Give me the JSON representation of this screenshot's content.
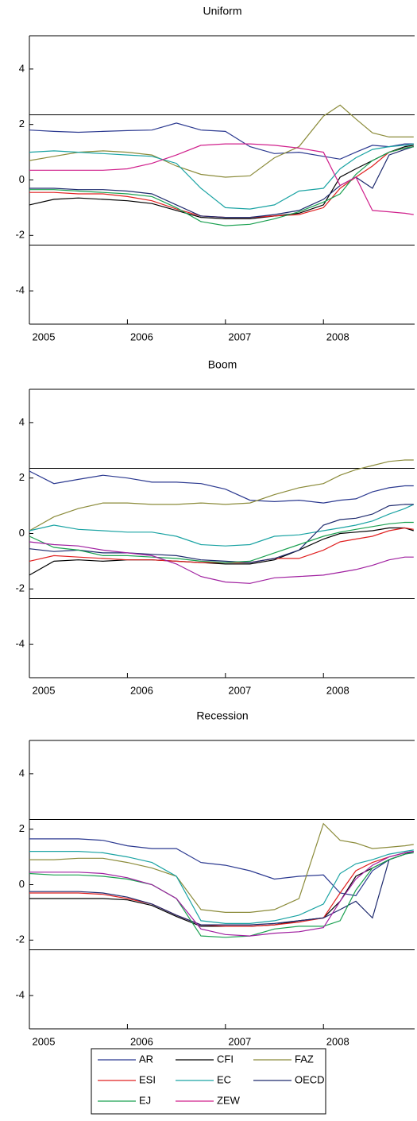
{
  "chart_data": [
    {
      "type": "line",
      "title": "Uniform",
      "x": [
        2005.0,
        2005.25,
        2005.5,
        2005.75,
        2006.0,
        2006.25,
        2006.5,
        2006.75,
        2007.0,
        2007.25,
        2007.5,
        2007.75,
        2008.0,
        2008.17,
        2008.33,
        2008.5,
        2008.67,
        2008.83,
        2008.92
      ],
      "xlim": [
        2005,
        2008.93
      ],
      "xticks": [
        2005,
        2006,
        2007,
        2008
      ],
      "ylim": [
        -5.2,
        5.2
      ],
      "yticks": [
        -4,
        -2,
        0,
        2,
        4
      ],
      "reference_lines": [
        -2.35,
        2.35
      ],
      "series": [
        {
          "name": "AR",
          "color": "#2b3990",
          "values": [
            1.8,
            1.75,
            1.72,
            1.75,
            1.78,
            1.8,
            2.05,
            1.8,
            1.75,
            1.2,
            0.95,
            1.0,
            0.85,
            0.75,
            1.0,
            1.25,
            1.2,
            1.3,
            1.3
          ]
        },
        {
          "name": "CFI",
          "color": "#000000",
          "values": [
            -0.9,
            -0.7,
            -0.65,
            -0.7,
            -0.75,
            -0.85,
            -1.1,
            -1.35,
            -1.4,
            -1.4,
            -1.3,
            -1.2,
            -0.9,
            0.1,
            0.4,
            0.7,
            1.0,
            1.2,
            1.25
          ]
        },
        {
          "name": "FAZ",
          "color": "#8b8b3a",
          "values": [
            0.7,
            0.85,
            1.0,
            1.05,
            1.0,
            0.9,
            0.5,
            0.2,
            0.1,
            0.15,
            0.8,
            1.2,
            2.3,
            2.7,
            2.2,
            1.7,
            1.55,
            1.55,
            1.55
          ]
        },
        {
          "name": "ESI",
          "color": "#e02020",
          "values": [
            -0.45,
            -0.45,
            -0.5,
            -0.5,
            -0.6,
            -0.75,
            -1.05,
            -1.3,
            -1.35,
            -1.35,
            -1.3,
            -1.25,
            -1.0,
            -0.3,
            0.1,
            0.5,
            1.0,
            1.15,
            1.2
          ]
        },
        {
          "name": "EC",
          "color": "#1aa3a3",
          "values": [
            1.0,
            1.05,
            1.0,
            0.95,
            0.9,
            0.85,
            0.6,
            -0.3,
            -1.0,
            -1.05,
            -0.9,
            -0.4,
            -0.3,
            0.4,
            0.8,
            1.1,
            1.2,
            1.25,
            1.3
          ]
        },
        {
          "name": "OECD",
          "color": "#1e2a6e",
          "values": [
            -0.3,
            -0.3,
            -0.35,
            -0.35,
            -0.4,
            -0.5,
            -0.9,
            -1.3,
            -1.35,
            -1.35,
            -1.25,
            -1.1,
            -0.7,
            -0.2,
            0.1,
            -0.3,
            0.9,
            1.1,
            1.2
          ]
        },
        {
          "name": "EJ",
          "color": "#1aa050",
          "values": [
            -0.35,
            -0.35,
            -0.4,
            -0.45,
            -0.5,
            -0.6,
            -1.0,
            -1.5,
            -1.65,
            -1.6,
            -1.4,
            -1.15,
            -0.8,
            -0.5,
            0.2,
            0.7,
            1.0,
            1.15,
            1.2
          ]
        },
        {
          "name": "ZEW",
          "color": "#d0208c",
          "values": [
            0.35,
            0.35,
            0.35,
            0.35,
            0.4,
            0.6,
            0.9,
            1.25,
            1.3,
            1.3,
            1.25,
            1.15,
            1.0,
            -0.2,
            0.1,
            -1.1,
            -1.15,
            -1.2,
            -1.25
          ]
        }
      ]
    },
    {
      "type": "line",
      "title": "Boom",
      "x": [
        2005.0,
        2005.25,
        2005.5,
        2005.75,
        2006.0,
        2006.25,
        2006.5,
        2006.75,
        2007.0,
        2007.25,
        2007.5,
        2007.75,
        2008.0,
        2008.17,
        2008.33,
        2008.5,
        2008.67,
        2008.83,
        2008.92
      ],
      "xlim": [
        2005,
        2008.93
      ],
      "xticks": [
        2005,
        2006,
        2007,
        2008
      ],
      "ylim": [
        -5.2,
        5.2
      ],
      "yticks": [
        -4,
        -2,
        0,
        2,
        4
      ],
      "reference_lines": [
        -2.35,
        2.35
      ],
      "series": [
        {
          "name": "AR",
          "color": "#2b3990",
          "values": [
            2.25,
            1.8,
            1.95,
            2.1,
            2.0,
            1.85,
            1.85,
            1.8,
            1.6,
            1.2,
            1.15,
            1.2,
            1.1,
            1.2,
            1.25,
            1.5,
            1.65,
            1.72,
            1.72
          ]
        },
        {
          "name": "CFI",
          "color": "#000000",
          "values": [
            -1.5,
            -1.0,
            -0.95,
            -1.0,
            -0.95,
            -0.95,
            -1.0,
            -1.05,
            -1.1,
            -1.1,
            -0.95,
            -0.6,
            -0.2,
            0.0,
            0.05,
            0.1,
            0.2,
            0.2,
            0.1
          ]
        },
        {
          "name": "FAZ",
          "color": "#8b8b3a",
          "values": [
            0.1,
            0.6,
            0.9,
            1.1,
            1.1,
            1.05,
            1.05,
            1.1,
            1.05,
            1.1,
            1.4,
            1.65,
            1.8,
            2.1,
            2.3,
            2.45,
            2.6,
            2.65,
            2.65
          ]
        },
        {
          "name": "ESI",
          "color": "#e02020",
          "values": [
            -1.0,
            -0.8,
            -0.85,
            -0.9,
            -0.95,
            -0.95,
            -1.0,
            -1.05,
            -1.05,
            -1.05,
            -0.9,
            -0.9,
            -0.6,
            -0.3,
            -0.2,
            -0.1,
            0.1,
            0.2,
            0.15
          ]
        },
        {
          "name": "EC",
          "color": "#1aa3a3",
          "values": [
            0.1,
            0.3,
            0.15,
            0.1,
            0.05,
            0.05,
            -0.1,
            -0.4,
            -0.45,
            -0.4,
            -0.1,
            -0.05,
            0.1,
            0.2,
            0.3,
            0.45,
            0.7,
            0.9,
            1.05
          ]
        },
        {
          "name": "OECD",
          "color": "#1e2a6e",
          "values": [
            -0.55,
            -0.65,
            -0.6,
            -0.7,
            -0.7,
            -0.75,
            -0.8,
            -0.95,
            -1.0,
            -1.05,
            -0.9,
            -0.6,
            0.3,
            0.5,
            0.55,
            0.7,
            1.0,
            1.05,
            1.05
          ]
        },
        {
          "name": "EJ",
          "color": "#1aa050",
          "values": [
            -0.1,
            -0.5,
            -0.6,
            -0.8,
            -0.8,
            -0.85,
            -0.9,
            -1.0,
            -1.05,
            -1.0,
            -0.7,
            -0.4,
            -0.1,
            0.05,
            0.15,
            0.25,
            0.35,
            0.4,
            0.4
          ]
        },
        {
          "name": "ZEW",
          "color": "#a020a0",
          "values": [
            -0.3,
            -0.4,
            -0.45,
            -0.6,
            -0.7,
            -0.8,
            -1.1,
            -1.55,
            -1.75,
            -1.8,
            -1.6,
            -1.55,
            -1.5,
            -1.4,
            -1.3,
            -1.15,
            -0.95,
            -0.85,
            -0.85
          ]
        }
      ]
    },
    {
      "type": "line",
      "title": "Recession",
      "x": [
        2005.0,
        2005.25,
        2005.5,
        2005.75,
        2006.0,
        2006.25,
        2006.5,
        2006.75,
        2007.0,
        2007.25,
        2007.5,
        2007.75,
        2008.0,
        2008.17,
        2008.33,
        2008.5,
        2008.67,
        2008.83,
        2008.92
      ],
      "xlim": [
        2005,
        2008.93
      ],
      "xticks": [
        2005,
        2006,
        2007,
        2008
      ],
      "ylim": [
        -5.2,
        5.2
      ],
      "yticks": [
        -4,
        -2,
        0,
        2,
        4
      ],
      "reference_lines": [
        -2.35,
        2.35
      ],
      "series": [
        {
          "name": "AR",
          "color": "#2b3990",
          "values": [
            1.65,
            1.65,
            1.65,
            1.6,
            1.4,
            1.3,
            1.3,
            0.8,
            0.7,
            0.5,
            0.2,
            0.3,
            0.35,
            -0.3,
            -0.4,
            0.5,
            0.9,
            1.1,
            1.2
          ]
        },
        {
          "name": "CFI",
          "color": "#000000",
          "values": [
            -0.5,
            -0.5,
            -0.5,
            -0.5,
            -0.55,
            -0.75,
            -1.15,
            -1.5,
            -1.5,
            -1.5,
            -1.45,
            -1.3,
            -1.2,
            -0.6,
            0.3,
            0.6,
            0.9,
            1.1,
            1.2
          ]
        },
        {
          "name": "FAZ",
          "color": "#8b8b3a",
          "values": [
            0.9,
            0.9,
            0.95,
            0.95,
            0.8,
            0.6,
            0.3,
            -0.9,
            -1.0,
            -1.0,
            -0.9,
            -0.5,
            2.2,
            1.6,
            1.5,
            1.3,
            1.35,
            1.4,
            1.45
          ]
        },
        {
          "name": "ESI",
          "color": "#e02020",
          "values": [
            -0.3,
            -0.3,
            -0.3,
            -0.35,
            -0.5,
            -0.7,
            -1.1,
            -1.45,
            -1.5,
            -1.5,
            -1.45,
            -1.35,
            -1.2,
            -0.3,
            0.5,
            0.8,
            1.0,
            1.15,
            1.2
          ]
        },
        {
          "name": "EC",
          "color": "#1aa3a3",
          "values": [
            1.2,
            1.2,
            1.2,
            1.15,
            1.0,
            0.8,
            0.3,
            -1.3,
            -1.4,
            -1.4,
            -1.3,
            -1.1,
            -0.7,
            0.4,
            0.75,
            0.9,
            1.1,
            1.2,
            1.25
          ]
        },
        {
          "name": "OECD",
          "color": "#1e2a6e",
          "values": [
            -0.25,
            -0.25,
            -0.25,
            -0.3,
            -0.45,
            -0.7,
            -1.1,
            -1.45,
            -1.45,
            -1.45,
            -1.4,
            -1.3,
            -1.2,
            -0.9,
            -0.6,
            -1.2,
            0.9,
            1.1,
            1.2
          ]
        },
        {
          "name": "EJ",
          "color": "#1aa050",
          "values": [
            0.4,
            0.35,
            0.35,
            0.3,
            0.2,
            0.0,
            -0.5,
            -1.85,
            -1.9,
            -1.85,
            -1.6,
            -1.5,
            -1.5,
            -1.3,
            -0.2,
            0.6,
            0.9,
            1.1,
            1.15
          ]
        },
        {
          "name": "ZEW",
          "color": "#a020a0",
          "values": [
            0.45,
            0.45,
            0.45,
            0.4,
            0.25,
            0.0,
            -0.5,
            -1.6,
            -1.8,
            -1.85,
            -1.75,
            -1.7,
            -1.55,
            -0.6,
            0.2,
            0.7,
            1.0,
            1.15,
            1.2
          ]
        }
      ]
    }
  ]
}
